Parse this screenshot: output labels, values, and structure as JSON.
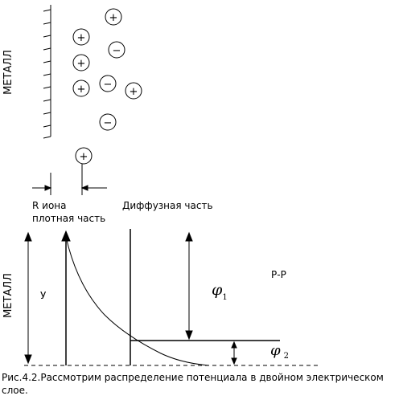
{
  "top": {
    "metal_label": "МЕТАЛЛ",
    "ions": [
      {
        "sign": "+"
      },
      {
        "sign": "+"
      },
      {
        "sign": "−"
      },
      {
        "sign": "+"
      },
      {
        "sign": "+"
      },
      {
        "sign": "−"
      },
      {
        "sign": "+"
      },
      {
        "sign": "−"
      },
      {
        "sign": "+"
      }
    ],
    "dense_label_line1": "R иона",
    "dense_label_line2": "плотная часть",
    "diffuse_label": "Диффузная часть"
  },
  "bottom": {
    "metal_label": "МЕТАЛЛ",
    "y_label": "У",
    "phi1_symbol": "φ",
    "phi1_subscript": "1",
    "phi2_symbol": "φ",
    "phi2_subscript": "2",
    "pp_label": "Р-Р"
  },
  "caption": "Рис.4.2.Рассмотрим распределение потенциала в двойном электрическом слое."
}
